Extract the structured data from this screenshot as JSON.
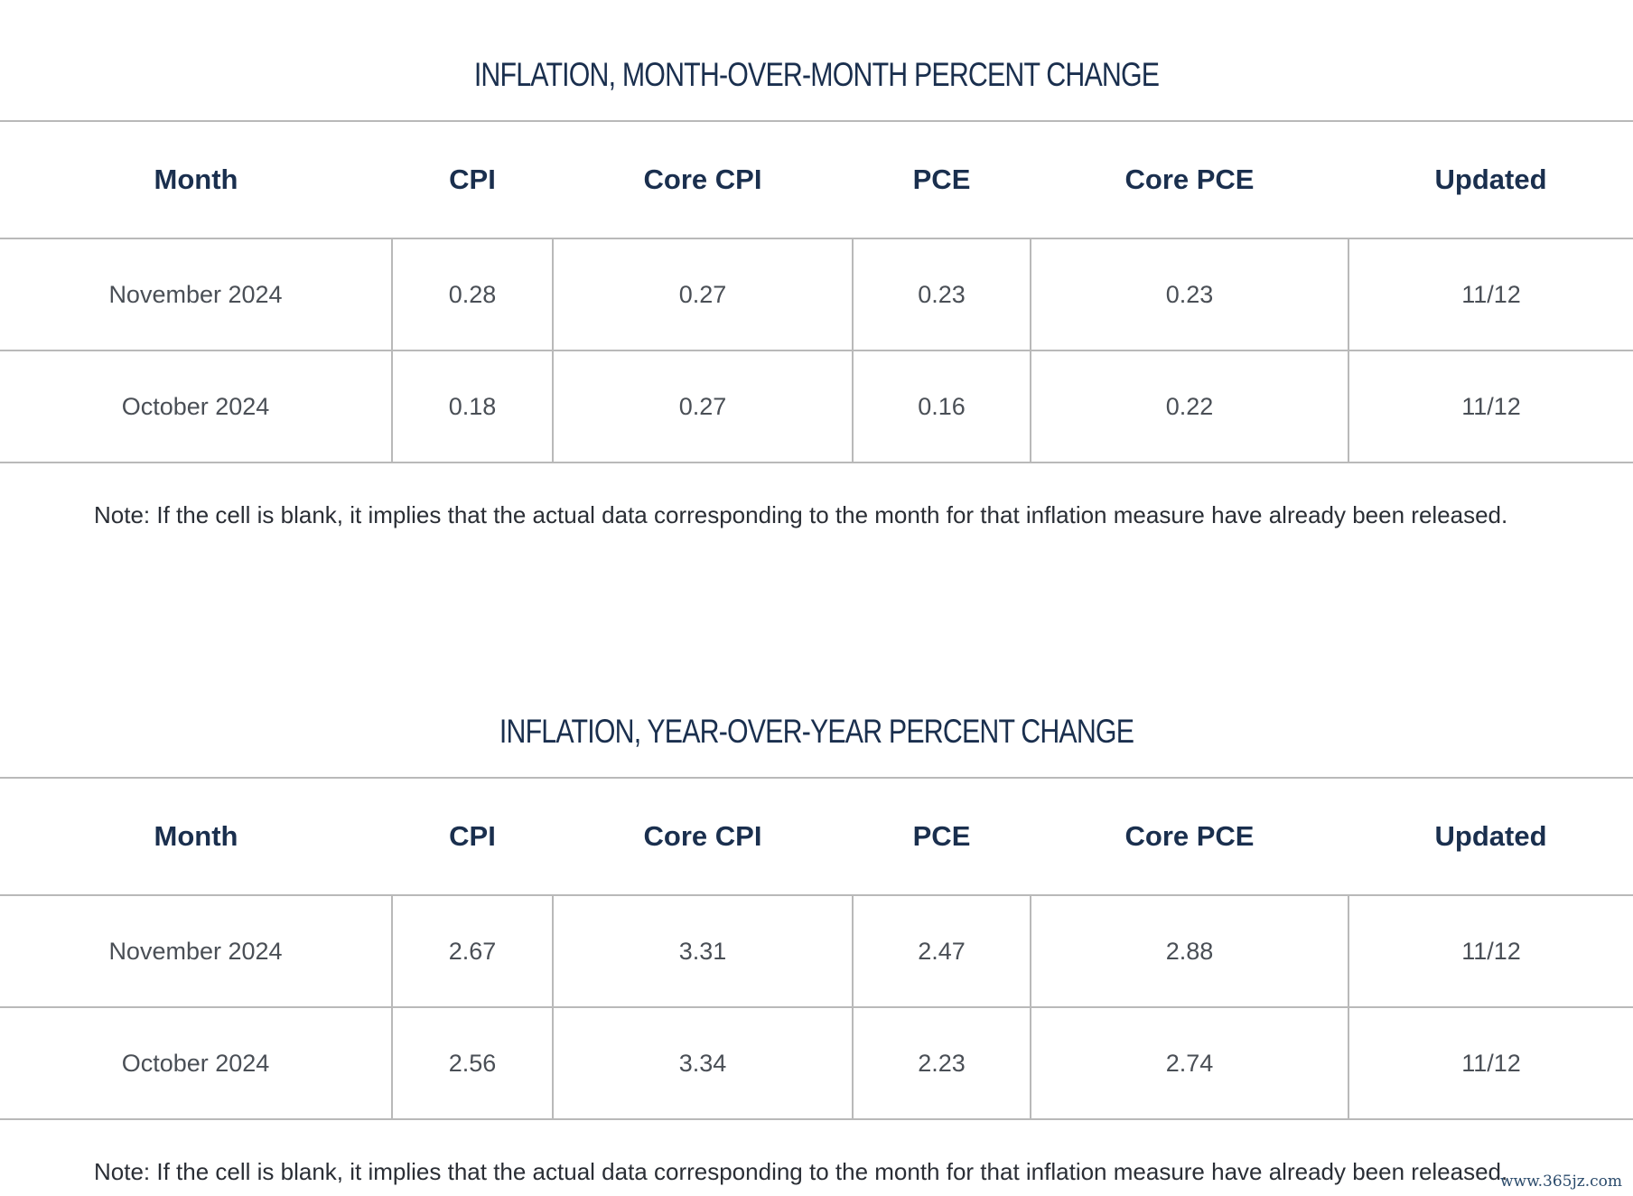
{
  "tables": [
    {
      "title": "INFLATION, MONTH-OVER-MONTH PERCENT CHANGE",
      "headers": [
        "Month",
        "CPI",
        "Core CPI",
        "PCE",
        "Core PCE",
        "Updated"
      ],
      "rows": [
        [
          "November 2024",
          "0.28",
          "0.27",
          "0.23",
          "0.23",
          "11/12"
        ],
        [
          "October 2024",
          "0.18",
          "0.27",
          "0.16",
          "0.22",
          "11/12"
        ]
      ],
      "note": "Note: If the cell is blank, it implies that the actual data corresponding to the month for that inflation measure have already been released."
    },
    {
      "title": "INFLATION, YEAR-OVER-YEAR PERCENT CHANGE",
      "headers": [
        "Month",
        "CPI",
        "Core CPI",
        "PCE",
        "Core PCE",
        "Updated"
      ],
      "rows": [
        [
          "November 2024",
          "2.67",
          "3.31",
          "2.47",
          "2.88",
          "11/12"
        ],
        [
          "October 2024",
          "2.56",
          "3.34",
          "2.23",
          "2.74",
          "11/12"
        ]
      ],
      "note": "Note: If the cell is blank, it implies that the actual data corresponding to the month for that inflation measure have already been released."
    }
  ],
  "watermark": "www.365jz.com"
}
